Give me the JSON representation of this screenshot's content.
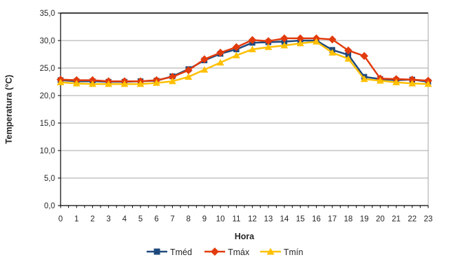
{
  "chart_data": {
    "type": "line",
    "x": [
      0,
      1,
      2,
      3,
      4,
      5,
      6,
      7,
      8,
      9,
      10,
      11,
      12,
      13,
      14,
      15,
      16,
      17,
      18,
      19,
      20,
      21,
      22,
      23
    ],
    "series": [
      {
        "name": "Tméd",
        "marker": "square",
        "color": "#1F497D",
        "values": [
          22.8,
          22.6,
          22.6,
          22.5,
          22.5,
          22.6,
          22.7,
          23.5,
          24.8,
          26.4,
          27.6,
          28.4,
          29.6,
          29.7,
          29.8,
          30.0,
          30.0,
          28.3,
          27.4,
          23.4,
          23.0,
          22.8,
          22.9,
          22.5
        ]
      },
      {
        "name": "Tmáx",
        "marker": "diamond",
        "color": "#E23B0D",
        "values": [
          22.9,
          22.8,
          22.8,
          22.6,
          22.6,
          22.6,
          22.8,
          23.4,
          24.6,
          26.6,
          27.8,
          28.8,
          30.1,
          29.9,
          30.4,
          30.4,
          30.4,
          30.2,
          28.2,
          27.2,
          23.1,
          23.0,
          22.9,
          22.7
        ]
      },
      {
        "name": "Tmín",
        "marker": "triangle",
        "color": "#FFC000",
        "values": [
          22.4,
          22.2,
          22.1,
          22.1,
          22.1,
          22.1,
          22.3,
          22.6,
          23.4,
          24.7,
          26.0,
          27.3,
          28.4,
          28.8,
          29.1,
          29.5,
          29.8,
          27.8,
          26.7,
          23.0,
          22.7,
          22.4,
          22.2,
          22.1
        ]
      }
    ],
    "xlabel": "Hora",
    "ylabel": "Temperatura (°C)",
    "ylim": [
      0,
      35
    ],
    "ytick_step": 5,
    "ytick_labels": [
      "0,0",
      "5,0",
      "10,0",
      "15,0",
      "20,0",
      "25,0",
      "30,0",
      "35,0"
    ],
    "grid": true,
    "legend_position": "bottom"
  },
  "colors": {
    "grid": "#A6A6A6",
    "axis": "#000000",
    "right_border": "#A6A6A6",
    "text": "#262626",
    "background": "#FFFFFF"
  }
}
